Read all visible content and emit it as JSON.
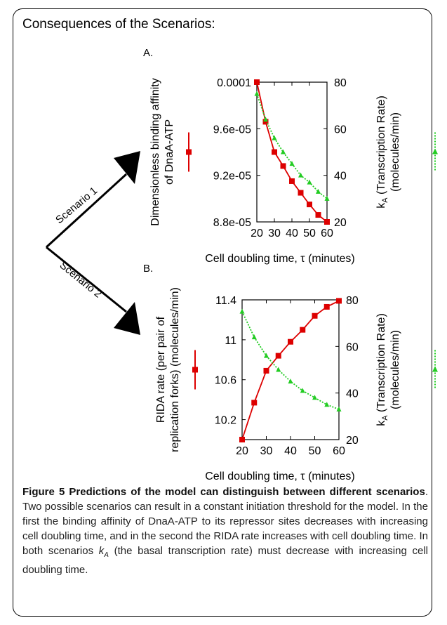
{
  "header": "Consequences of the Scenarios:",
  "scenario_labels": [
    "Scenario 1",
    "Scenario 2"
  ],
  "caption": {
    "bold": "Figure 5 Predictions of the model can distinguish between different scenarios",
    "text1": ". Two possible scenarios can result in a constant initiation threshold for the model. In the first the binding affinity of DnaA-ATP to its repressor sites decreases with increasing cell doubling time, and in the second the RIDA rate increases with cell doubling time. In both scenarios ",
    "ka_main": "k",
    "ka_sub": "A",
    "text2": " (the basal transcription rate) must decrease with increasing cell doubling time."
  },
  "colors": {
    "red": "#dd0000",
    "green": "#22cc22"
  },
  "chart_data": [
    {
      "type": "line",
      "panel_label": "A.",
      "xlabel": "Cell doubling time, τ (minutes)",
      "ylabel_left": [
        "Dimensionless binding affinity",
        "of DnaA-ATP"
      ],
      "ylabel_right_main": "k",
      "ylabel_right_sub": "A",
      "ylabel_right_rest": " (Transcription Rate)",
      "ylabel_right_line2": "(molecules/min)",
      "xlim": [
        20,
        60
      ],
      "ylim_left": [
        8.8e-05,
        0.0001
      ],
      "ylim_right": [
        20,
        80
      ],
      "xticks": [
        20,
        30,
        40,
        50,
        60
      ],
      "xtick_labels": [
        "20",
        "30",
        "40",
        "50",
        "60"
      ],
      "yticks_left": [
        8.8e-05,
        9.2e-05,
        9.6e-05,
        0.0001
      ],
      "ytick_labels_left": [
        "8.8e-05",
        "9.2e-05",
        "9.6e-05",
        "0.0001"
      ],
      "yticks_right": [
        20,
        40,
        60,
        80
      ],
      "ytick_labels_right": [
        "20",
        "40",
        "60",
        "80"
      ],
      "series": [
        {
          "axis": "left",
          "color": "#dd0000",
          "marker": "square",
          "x": [
            20,
            25,
            30,
            35,
            40,
            45,
            50,
            55,
            60
          ],
          "y": [
            0.0001,
            9.66e-05,
            9.4e-05,
            9.28e-05,
            9.15e-05,
            9.05e-05,
            8.95e-05,
            8.86e-05,
            8.8e-05
          ]
        },
        {
          "axis": "right",
          "color": "#22cc22",
          "marker": "triangle",
          "x": [
            20,
            25,
            30,
            35,
            40,
            45,
            50,
            55,
            60
          ],
          "y": [
            75,
            64,
            56,
            50,
            45,
            40,
            37,
            33,
            30
          ]
        }
      ]
    },
    {
      "type": "line",
      "panel_label": "B.",
      "xlabel": "Cell doubling time, τ (minutes)",
      "ylabel_left": [
        "RIDA rate (per pair of",
        "replication forks) (molecules/min)"
      ],
      "ylabel_right_main": "k",
      "ylabel_right_sub": "A",
      "ylabel_right_rest": " (Transcription Rate)",
      "ylabel_right_line2": "(molecules/min)",
      "xlim": [
        20,
        60
      ],
      "ylim_left": [
        10.0,
        11.4
      ],
      "ylim_right": [
        20,
        80
      ],
      "xticks": [
        20,
        30,
        40,
        50,
        60
      ],
      "xtick_labels": [
        "20",
        "30",
        "40",
        "50",
        "60"
      ],
      "yticks_left": [
        10.2,
        10.6,
        11.0,
        11.4
      ],
      "ytick_labels_left": [
        "10.2",
        "10.6",
        "11",
        "11.4"
      ],
      "yticks_right": [
        20,
        40,
        60,
        80
      ],
      "ytick_labels_right": [
        "20",
        "40",
        "60",
        "80"
      ],
      "series": [
        {
          "axis": "left",
          "color": "#dd0000",
          "marker": "square",
          "x": [
            20,
            25,
            30,
            35,
            40,
            45,
            50,
            55,
            60
          ],
          "y": [
            10.0,
            10.37,
            10.69,
            10.84,
            10.98,
            11.1,
            11.24,
            11.33,
            11.39
          ]
        },
        {
          "axis": "right",
          "color": "#22cc22",
          "marker": "triangle",
          "x": [
            20,
            25,
            30,
            35,
            40,
            45,
            50,
            55,
            60
          ],
          "y": [
            75,
            64,
            56,
            50,
            45,
            41,
            38,
            35,
            33
          ]
        }
      ]
    }
  ]
}
